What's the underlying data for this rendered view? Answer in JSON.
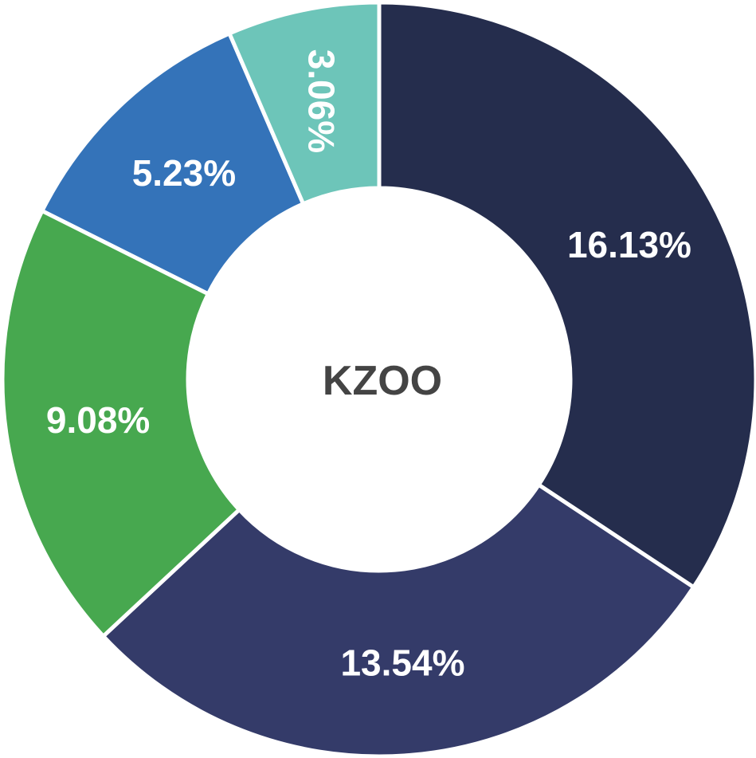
{
  "chart_data": {
    "type": "donut",
    "center_label": "KZOO",
    "categories": [
      null,
      null,
      null,
      null,
      null
    ],
    "values": [
      16.13,
      13.54,
      9.08,
      5.23,
      3.06
    ],
    "value_labels": [
      "16.13%",
      "13.54%",
      "9.08%",
      "5.23%",
      "3.06%"
    ],
    "colors": [
      "#252d4d",
      "#343b69",
      "#47a84f",
      "#3473b9",
      "#6dc5b9"
    ]
  }
}
